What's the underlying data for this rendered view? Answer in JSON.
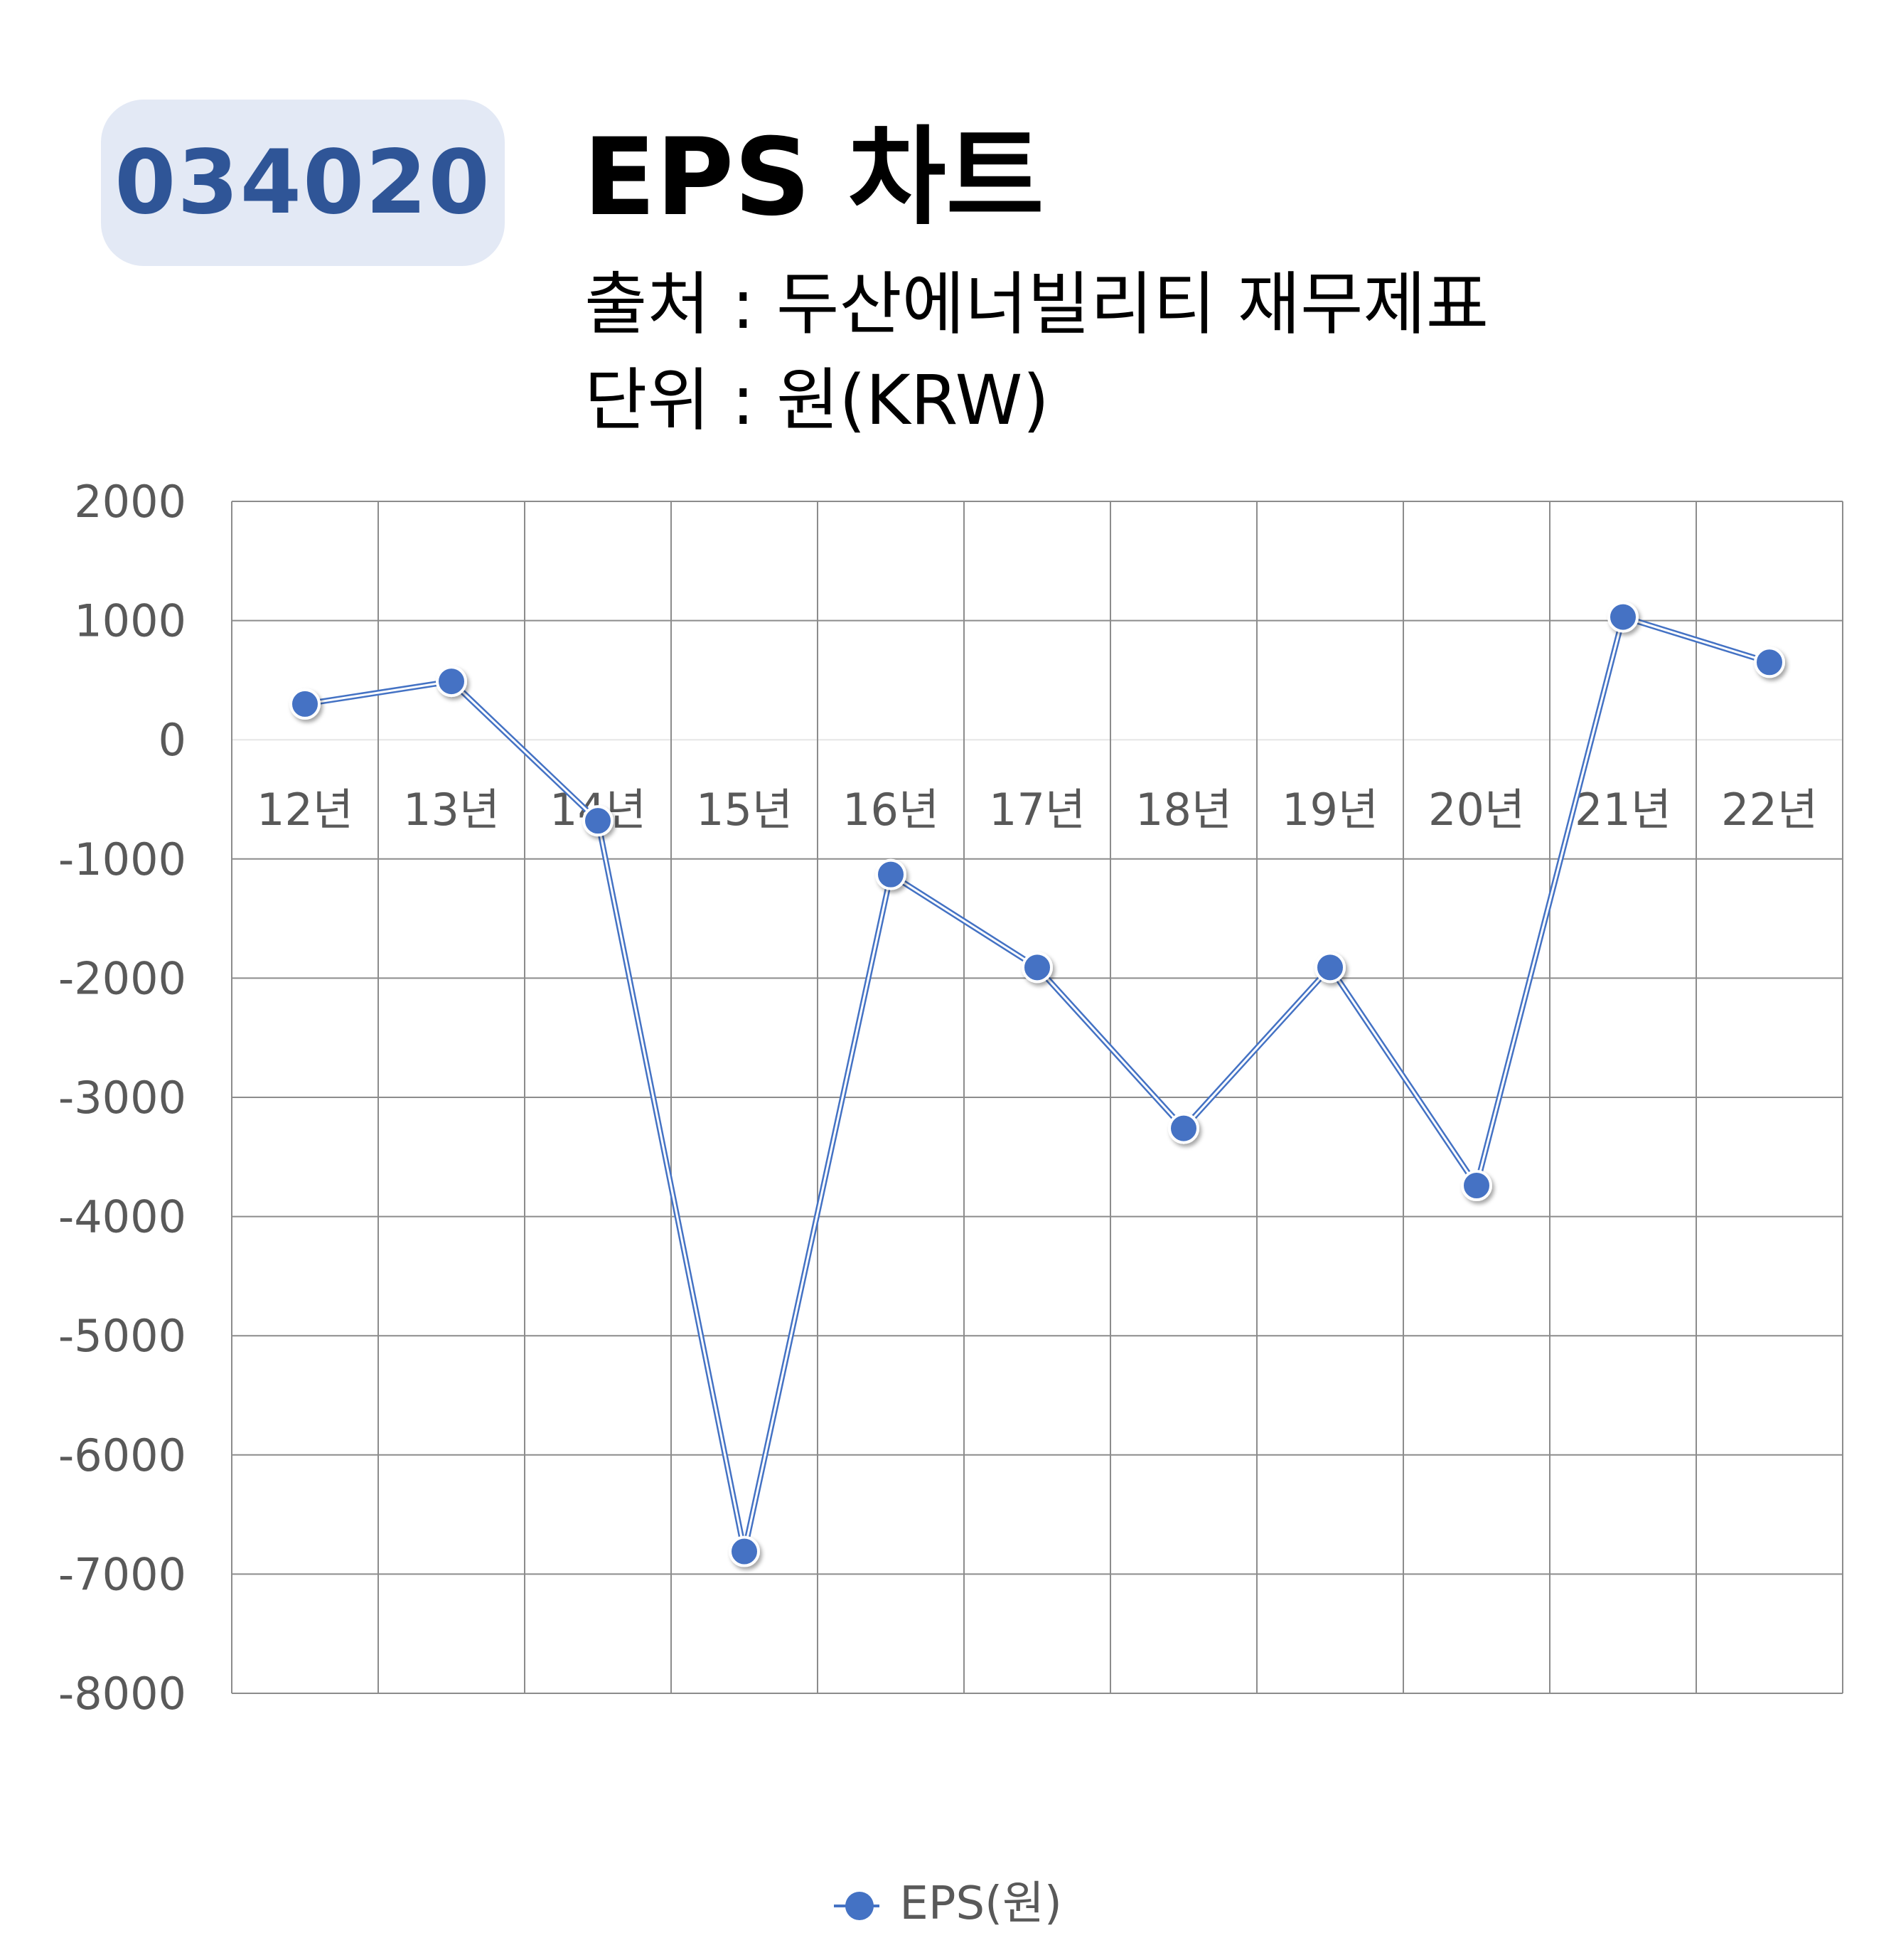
{
  "badge": {
    "code": "034020"
  },
  "header": {
    "title": "EPS 차트",
    "source": "출처 : 두산에너빌리티 재무제표",
    "unit": "단위 : 원(KRW)"
  },
  "chart_data": {
    "type": "line",
    "categories": [
      "12년",
      "13년",
      "14년",
      "15년",
      "16년",
      "17년",
      "18년",
      "19년",
      "20년",
      "21년",
      "22년"
    ],
    "series": [
      {
        "name": "EPS(원)",
        "values": [
          300,
          490,
          -680,
          -6810,
          -1130,
          -1910,
          -3260,
          -1910,
          -3740,
          1030,
          650
        ],
        "color": "#4472c4"
      }
    ],
    "ylim": [
      -8000,
      2000
    ],
    "yticks": [
      2000,
      1000,
      0,
      -1000,
      -2000,
      -3000,
      -4000,
      -5000,
      -6000,
      -7000,
      -8000
    ],
    "grid": true,
    "legend": "bottom"
  },
  "legend": {
    "label": "EPS(원)"
  }
}
